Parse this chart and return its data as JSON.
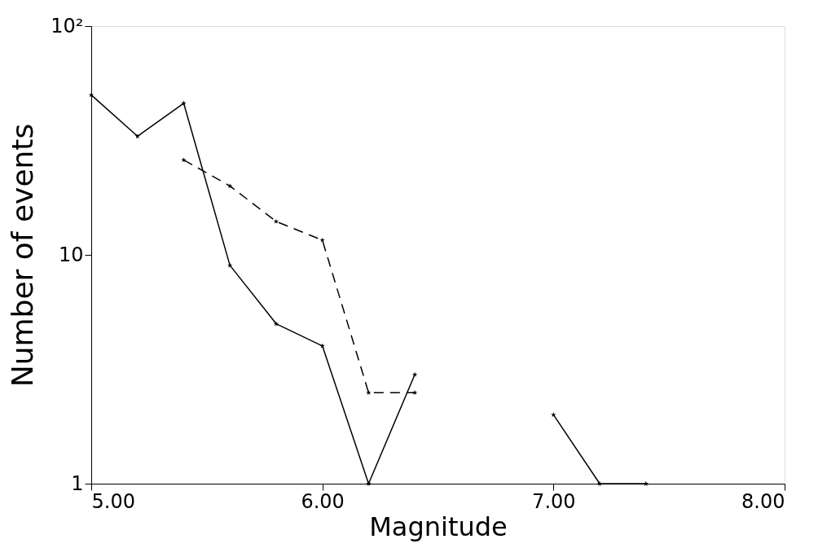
{
  "chart_data": {
    "type": "line",
    "xlabel": "Magnitude",
    "ylabel": "Number of events",
    "log": "y",
    "xlim": [
      5.0,
      8.0
    ],
    "xticks": [
      {
        "value": 5,
        "label": "5.00"
      },
      {
        "value": 6,
        "label": "6.00"
      },
      {
        "value": 7,
        "label": "7.00"
      },
      {
        "value": 8,
        "label": "8.00"
      }
    ],
    "ylim": [
      1,
      100
    ],
    "yticks": [
      1,
      10,
      {
        "value": 100,
        "label": "10²"
      }
    ],
    "marker": "star",
    "series": [
      {
        "color": "#000000",
        "line_style": "solid",
        "x": [
          5.0,
          5.2,
          5.4,
          5.6,
          5.8,
          6.0,
          6.2,
          6.4,
          6.6,
          7.0,
          7.2,
          7.4
        ],
        "values": [
          50,
          33,
          46,
          9,
          5,
          4,
          1,
          3,
          null,
          2,
          1,
          1
        ]
      },
      {
        "color": "#000000",
        "line_style": "dashed",
        "x": [
          5.4,
          5.6,
          5.8,
          6.0,
          6.2,
          6.4
        ],
        "values": [
          26,
          20,
          14,
          11.6,
          2.5,
          2.5
        ]
      }
    ]
  }
}
